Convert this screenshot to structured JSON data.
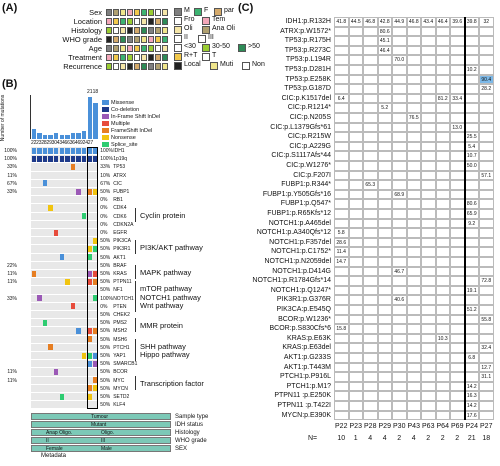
{
  "panels": {
    "a": "(A)",
    "b": "(B)",
    "c": "(C)"
  },
  "panel_a": {
    "rows": [
      "Sex",
      "Location",
      "Histology",
      "WHO grade",
      "Age",
      "Treatment",
      "Recurrence"
    ],
    "legend": [
      [
        {
          "c": "#7f7f7f",
          "t": "M"
        },
        {
          "c": "#3cb371",
          "t": "F"
        },
        {
          "c": "#d4a96a",
          "t": "par"
        }
      ],
      [
        {
          "c": "#ffffff",
          "t": "Fro"
        },
        {
          "c": "#f4a7b9",
          "t": "Tem"
        }
      ],
      [
        {
          "c": "#f5e6a8",
          "t": "Oli"
        },
        {
          "c": "#b0a070",
          "t": "Ana Oli"
        }
      ],
      [
        {
          "c": "#ffffff",
          "t": "II"
        },
        {
          "c": "#ffffff",
          "t": "III"
        }
      ],
      [
        {
          "c": "#ffffff",
          "t": "<30"
        },
        {
          "c": "#9acd32",
          "t": "30-50"
        },
        {
          "c": "#2e8b57",
          "t": ">50"
        }
      ],
      [
        {
          "c": "#f2c94c",
          "t": "R+T"
        },
        {
          "c": "#ffffff",
          "t": "T"
        }
      ],
      [
        {
          "c": "#222222",
          "t": "Local"
        },
        {
          "c": "#f0e68c",
          "t": "Muti"
        },
        {
          "c": "#ffffff",
          "t": "Non"
        }
      ]
    ]
  },
  "panel_b": {
    "yaxis": "Number of mutations",
    "bar_peaks": [
      "21",
      "18"
    ],
    "samples": [
      "P22",
      "P23",
      "P28",
      "P29",
      "P30",
      "P43",
      "P46",
      "P63",
      "P64",
      "P69",
      "P24",
      "P27"
    ],
    "bar_values": [
      5,
      3,
      2,
      2,
      3,
      2,
      2,
      3,
      3,
      4,
      21,
      18
    ],
    "legend": [
      {
        "c": "#4a90d9",
        "t": "Missense"
      },
      {
        "c": "#1e3a8a",
        "t": "Co-deletion"
      },
      {
        "c": "#9b59b6",
        "t": "In-Frame Shift InDel"
      },
      {
        "c": "#e74c3c",
        "t": "Multiple"
      },
      {
        "c": "#e67e22",
        "t": "FrameShift InDel"
      },
      {
        "c": "#f1c40f",
        "t": "Nonsense"
      },
      {
        "c": "#2ecc71",
        "t": "Splice_site"
      }
    ],
    "genes": [
      {
        "l": "100%",
        "g": "IDH1",
        "r": "100%"
      },
      {
        "l": "100%",
        "g": "1p19q",
        "r": "100%"
      },
      {
        "l": "33%",
        "g": "TP53",
        "r": "33%"
      },
      {
        "l": "11%",
        "g": "ATRX",
        "r": "10%"
      },
      {
        "l": "67%",
        "g": "CIC",
        "r": "67%"
      },
      {
        "l": "33%",
        "g": "FUBP1",
        "r": "50%"
      },
      {
        "l": "",
        "g": "RB1",
        "r": "0%"
      },
      {
        "l": "",
        "g": "CDK4",
        "r": "0%"
      },
      {
        "l": "",
        "g": "CDK6",
        "r": "0%"
      },
      {
        "l": "",
        "g": "CDKN2A",
        "r": "0%"
      },
      {
        "l": "",
        "g": "EGFR",
        "r": "0%"
      },
      {
        "l": "",
        "g": "PIK3CA",
        "r": "50%"
      },
      {
        "l": "",
        "g": "PIK3R1",
        "r": "50%"
      },
      {
        "l": "",
        "g": "AKT1",
        "r": "50%"
      },
      {
        "l": "22%",
        "g": "BRAF",
        "r": "50%"
      },
      {
        "l": "11%",
        "g": "KRAS",
        "r": "50%"
      },
      {
        "l": "11%",
        "g": "PTPN11",
        "r": "50%"
      },
      {
        "l": "",
        "g": "NF1",
        "r": "50%"
      },
      {
        "l": "33%",
        "g": "NOTCH1",
        "r": "100%"
      },
      {
        "l": "",
        "g": "PTEN",
        "r": "0%"
      },
      {
        "l": "",
        "g": "CHEK2",
        "r": "50%"
      },
      {
        "l": "",
        "g": "PMS2",
        "r": "50%"
      },
      {
        "l": "",
        "g": "MSH2",
        "r": "50%"
      },
      {
        "l": "",
        "g": "MSH6",
        "r": "50%"
      },
      {
        "l": "",
        "g": "PTCH1",
        "r": "50%"
      },
      {
        "l": "",
        "g": "YAP1",
        "r": "50%"
      },
      {
        "l": "",
        "g": "SMARCB1",
        "r": "50%"
      },
      {
        "l": "11%",
        "g": "BCOR",
        "r": "50%"
      },
      {
        "l": "11%",
        "g": "MYC",
        "r": "50%"
      },
      {
        "l": "",
        "g": "MYCN",
        "r": "50%"
      },
      {
        "l": "",
        "g": "SETD2",
        "r": "50%"
      },
      {
        "l": "",
        "g": "KLF4",
        "r": "50%"
      }
    ],
    "pathways": [
      {
        "t": "Cyclin protein",
        "row": 8
      },
      {
        "t": "PI3K/AKT pathway",
        "row": 12
      },
      {
        "t": "MAPK pathway",
        "row": 15
      },
      {
        "t": "mTOR pathway",
        "row": 17
      },
      {
        "t": "NOTCH1 pathway",
        "row": 18
      },
      {
        "t": "Wnt pathway",
        "row": 19
      },
      {
        "t": "MMR protein",
        "row": 21.5
      },
      {
        "t": "SHH pathway",
        "row": 24
      },
      {
        "t": "Hippo pathway",
        "row": 25
      },
      {
        "t": "Transcription factor",
        "row": 28.5
      }
    ],
    "metadata_label": "Metadata",
    "meta_rows": [
      {
        "cells": [
          "Tumour"
        ],
        "tag": "Sample type"
      },
      {
        "cells": [
          "Mutant"
        ],
        "tag": "IDH status"
      },
      {
        "cells": [
          "Anap Oligo.",
          "Oligo."
        ],
        "tag": "Histology"
      },
      {
        "cells": [
          "II",
          "III"
        ],
        "tag": "WHO grade"
      },
      {
        "cells": [
          "Female",
          "Male"
        ],
        "tag": "SEX"
      }
    ]
  },
  "panel_c": {
    "samples": [
      "P22",
      "P23",
      "P28",
      "P29",
      "P30",
      "P43",
      "P63",
      "P64",
      "P69",
      "P24",
      "P27"
    ],
    "counts": [
      "10",
      "1",
      "4",
      "4",
      "2",
      "4",
      "2",
      "2",
      "2",
      "21",
      "18"
    ],
    "n_label": "N=",
    "highlight_color": "#7db9e8",
    "rows": [
      {
        "m": "IDH1:p.R132H",
        "v": {
          "0": "41.8",
          "1": "44.5",
          "2": "46.8",
          "3": "42.8",
          "4": "44.9",
          "5": "46.8",
          "6": "43.4",
          "7": "46.4",
          "8": "39.6",
          "9": "39.8",
          "10": "32"
        }
      },
      {
        "m": "ATRX:p.W1572*",
        "v": {
          "3": "80.6"
        }
      },
      {
        "m": "TP53:p.R175H",
        "v": {
          "3": "45.1"
        }
      },
      {
        "m": "TP53:p.R273C",
        "v": {
          "3": "46.4"
        }
      },
      {
        "m": "TP53:p.L194R",
        "v": {
          "4": "70.0"
        }
      },
      {
        "m": "TP53:p.D281H",
        "v": {
          "9": "10.2"
        }
      },
      {
        "m": "TP53:p.E258K",
        "v": {
          "10": "90.4"
        }
      },
      {
        "m": "TP53:p.G187D",
        "v": {
          "10": "28.2"
        }
      },
      {
        "m": "CIC:p.K1517del",
        "v": {
          "0": "6.4",
          "7": "81.2",
          "8": "33.4"
        }
      },
      {
        "m": "CIC:p.R1214*",
        "v": {
          "3": "5.2"
        }
      },
      {
        "m": "CIC:p.N205S",
        "v": {
          "5": "76.5"
        }
      },
      {
        "m": "CIC:p.L1379Gfs*61",
        "v": {
          "8": "13.0"
        }
      },
      {
        "m": "CIC:p.R215W",
        "v": {
          "9": "25.5"
        }
      },
      {
        "m": "CIC:p.A229G",
        "v": {
          "9": "5.4"
        }
      },
      {
        "m": "CIC:p.S1117Afs*44",
        "v": {
          "9": "10.7"
        }
      },
      {
        "m": "CIC:p.W1276*",
        "v": {
          "9": "50.0"
        }
      },
      {
        "m": "CIC:p.F207I",
        "v": {
          "10": "57.1"
        }
      },
      {
        "m": "FUBP1:p.R344*",
        "v": {
          "2": "65.3"
        }
      },
      {
        "m": "FUBP1:p.Y505Gfs*16",
        "v": {
          "4": "68.9"
        }
      },
      {
        "m": "FUBP1:p.Q547*",
        "v": {
          "9": "80.6"
        }
      },
      {
        "m": "FUBP1:p.R65Kfs*12",
        "v": {
          "9": "65.9"
        }
      },
      {
        "m": "NOTCH1:p.A465del",
        "v": {
          "9": "9.2"
        }
      },
      {
        "m": "NOTCH1:p.A340Qfs*12",
        "v": {
          "0": "5.8"
        }
      },
      {
        "m": "NOTCH1:p.F357del",
        "v": {
          "0": "28.6"
        }
      },
      {
        "m": "NOTCH1:p.C1752*",
        "v": {
          "0": "11.4"
        }
      },
      {
        "m": "NOTCH1:p.N2059del",
        "v": {
          "0": "14.7"
        }
      },
      {
        "m": "NOTCH1:p.D414G",
        "v": {
          "4": "46.7"
        }
      },
      {
        "m": "NOTCH1:p.R1784Gfs*14",
        "v": {
          "10": "72.8"
        }
      },
      {
        "m": "NOTCH1:p.Q1247*",
        "v": {
          "9": "19.1"
        }
      },
      {
        "m": "PIK3R1:p.G376R",
        "v": {
          "4": "40.6"
        }
      },
      {
        "m": "PIK3CA:p.E545Q",
        "v": {
          "9": "51.2"
        }
      },
      {
        "m": "BCOR:p.W1236*",
        "v": {
          "10": "55.8"
        }
      },
      {
        "m": "BCOR:p.S830Cfs*6",
        "v": {
          "0": "15.8"
        }
      },
      {
        "m": "KRAS:p.E63K",
        "v": {
          "7": "10.3"
        }
      },
      {
        "m": "KRAS:p.E63del",
        "v": {
          "10": "32.4"
        }
      },
      {
        "m": "AKT1:p.G233S",
        "v": {
          "9": "6.8"
        }
      },
      {
        "m": "AKT1:p.T443M",
        "v": {
          "10": "12.7"
        }
      },
      {
        "m": "PTCH1:p.P916L",
        "v": {
          "10": "31.1"
        }
      },
      {
        "m": "PTCH1:p.M1?",
        "v": {
          "9": "14.2"
        }
      },
      {
        "m": "PTPN11 :p.E250K",
        "v": {
          "9": "16.3"
        }
      },
      {
        "m": "PTPN11 :p.T422I",
        "v": {
          "9": "14.2"
        }
      },
      {
        "m": "MYCN:p.E390K",
        "v": {
          "9": "17.6"
        }
      }
    ]
  }
}
